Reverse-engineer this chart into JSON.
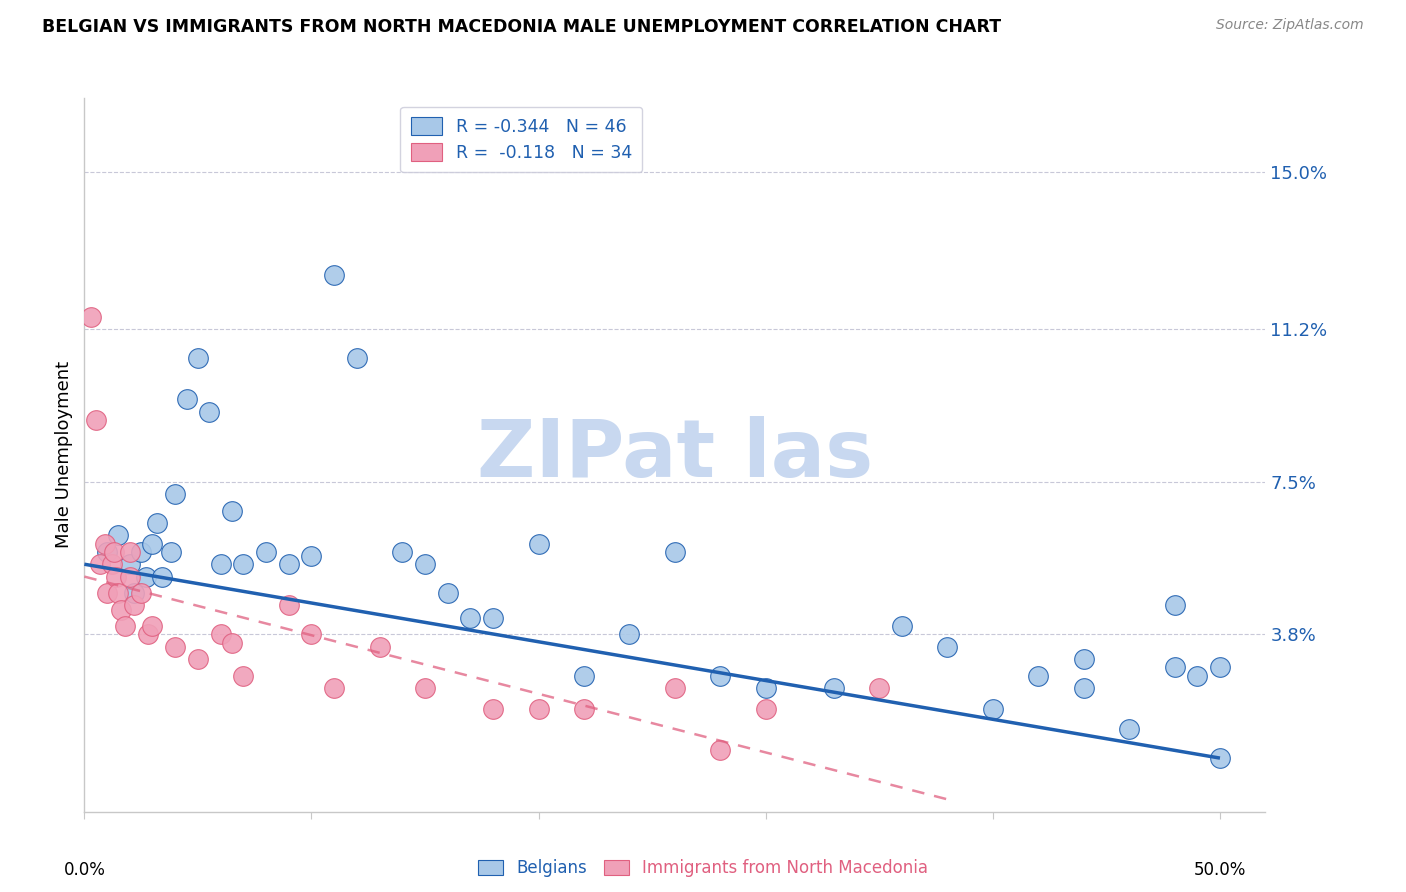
{
  "title": "BELGIAN VS IMMIGRANTS FROM NORTH MACEDONIA MALE UNEMPLOYMENT CORRELATION CHART",
  "source": "Source: ZipAtlas.com",
  "ylabel": "Male Unemployment",
  "ytick_labels": [
    "15.0%",
    "11.2%",
    "7.5%",
    "3.8%"
  ],
  "ytick_values": [
    0.15,
    0.112,
    0.075,
    0.038
  ],
  "xlim": [
    0.0,
    0.52
  ],
  "ylim": [
    -0.005,
    0.168
  ],
  "legend_blue_r": "-0.344",
  "legend_blue_n": "46",
  "legend_pink_r": "-0.118",
  "legend_pink_n": "34",
  "blue_color": "#A8C8E8",
  "pink_color": "#F0A0B8",
  "blue_line_color": "#2060B0",
  "pink_line_color": "#E06080",
  "blue_scatter_x": [
    0.01,
    0.015,
    0.02,
    0.022,
    0.025,
    0.027,
    0.03,
    0.032,
    0.034,
    0.038,
    0.04,
    0.045,
    0.05,
    0.055,
    0.06,
    0.065,
    0.07,
    0.08,
    0.09,
    0.1,
    0.11,
    0.12,
    0.14,
    0.15,
    0.16,
    0.17,
    0.18,
    0.2,
    0.22,
    0.24,
    0.26,
    0.28,
    0.3,
    0.33,
    0.36,
    0.38,
    0.4,
    0.42,
    0.44,
    0.46,
    0.48,
    0.49,
    0.5,
    0.5,
    0.48,
    0.44
  ],
  "blue_scatter_y": [
    0.058,
    0.062,
    0.055,
    0.048,
    0.058,
    0.052,
    0.06,
    0.065,
    0.052,
    0.058,
    0.072,
    0.095,
    0.105,
    0.092,
    0.055,
    0.068,
    0.055,
    0.058,
    0.055,
    0.057,
    0.125,
    0.105,
    0.058,
    0.055,
    0.048,
    0.042,
    0.042,
    0.06,
    0.028,
    0.038,
    0.058,
    0.028,
    0.025,
    0.025,
    0.04,
    0.035,
    0.02,
    0.028,
    0.032,
    0.015,
    0.03,
    0.028,
    0.008,
    0.03,
    0.045,
    0.025
  ],
  "pink_scatter_x": [
    0.003,
    0.005,
    0.007,
    0.009,
    0.01,
    0.012,
    0.013,
    0.014,
    0.015,
    0.016,
    0.018,
    0.02,
    0.02,
    0.022,
    0.025,
    0.028,
    0.03,
    0.04,
    0.05,
    0.06,
    0.065,
    0.07,
    0.09,
    0.1,
    0.11,
    0.13,
    0.15,
    0.18,
    0.2,
    0.22,
    0.26,
    0.28,
    0.3,
    0.35
  ],
  "pink_scatter_y": [
    0.115,
    0.09,
    0.055,
    0.06,
    0.048,
    0.055,
    0.058,
    0.052,
    0.048,
    0.044,
    0.04,
    0.058,
    0.052,
    0.045,
    0.048,
    0.038,
    0.04,
    0.035,
    0.032,
    0.038,
    0.036,
    0.028,
    0.045,
    0.038,
    0.025,
    0.035,
    0.025,
    0.02,
    0.02,
    0.02,
    0.025,
    0.01,
    0.02,
    0.025
  ],
  "watermark_text": "ZIPat las",
  "watermark_color": "#C8D8F0",
  "grid_color": "#C8C8D8",
  "spine_color": "#C8C8C8"
}
